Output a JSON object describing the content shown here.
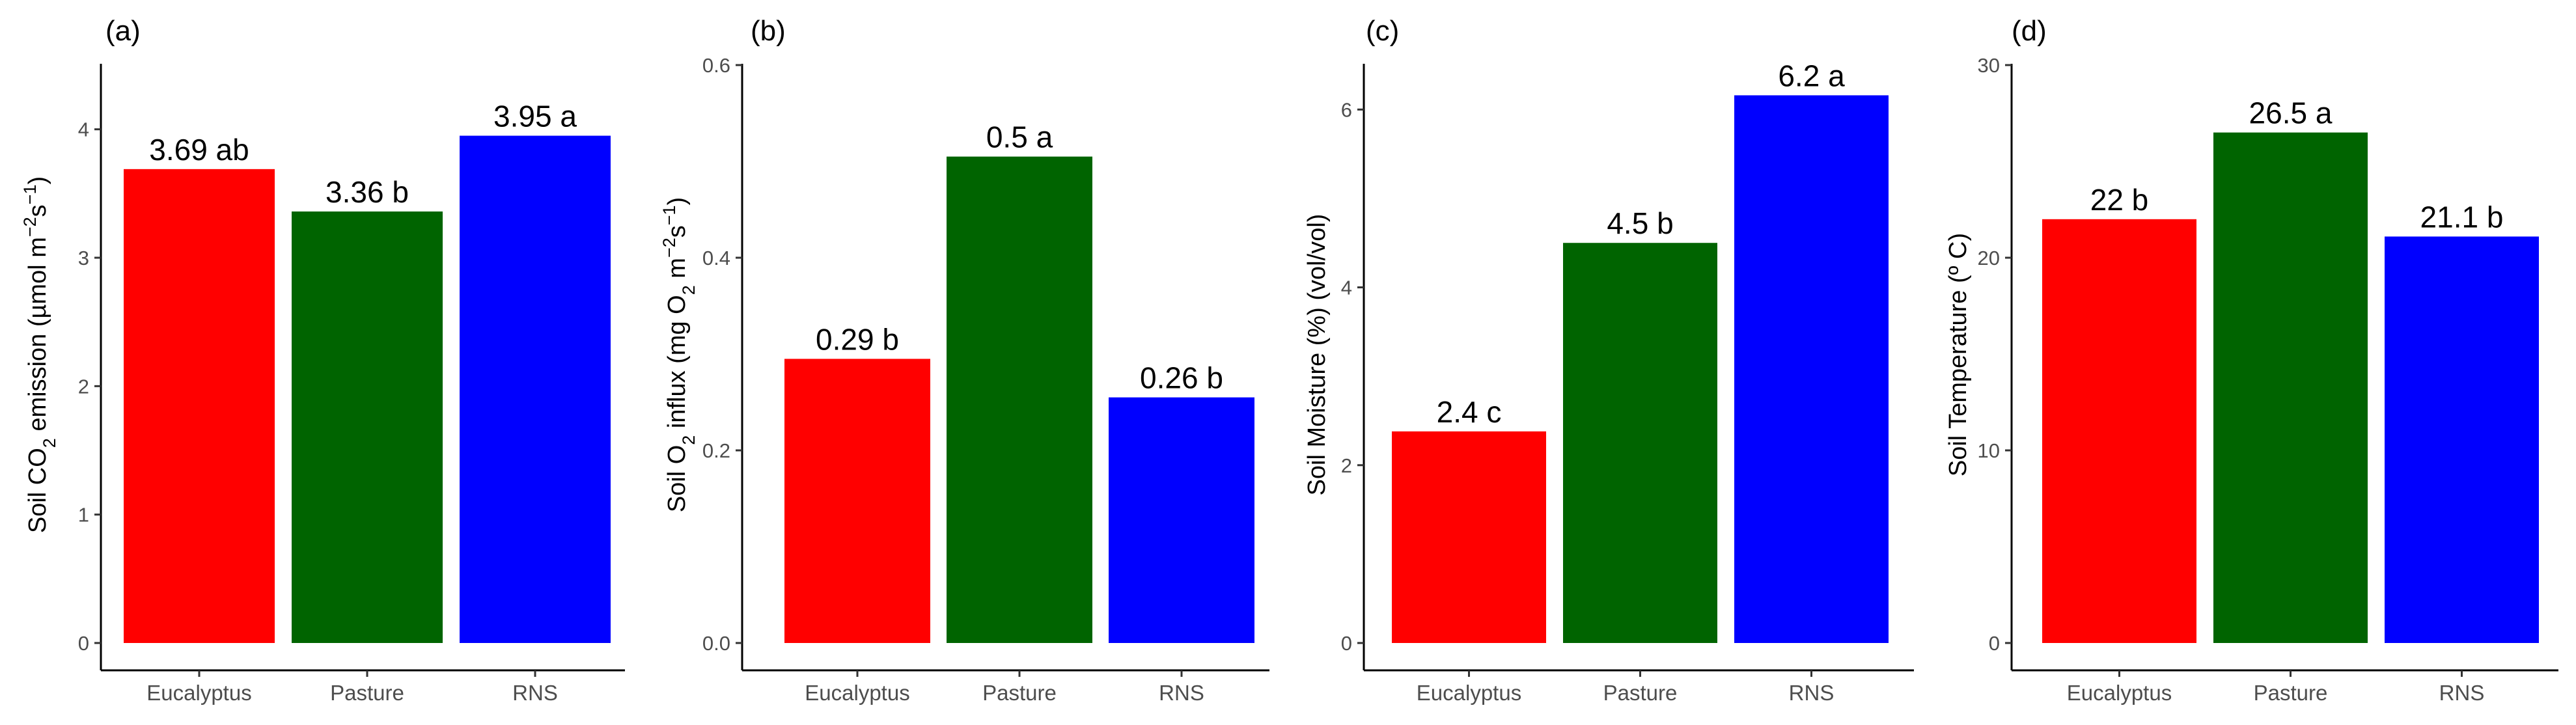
{
  "colors": {
    "Eucalyptus": "#ff0000",
    "Pasture": "#006400",
    "RNS": "#0000ff"
  },
  "chart_data": [
    {
      "type": "bar",
      "panel_label": "(a)",
      "categories": [
        "Eucalyptus",
        "Pasture",
        "RNS"
      ],
      "values": [
        3.69,
        3.36,
        3.95
      ],
      "bar_labels": [
        "3.69 ab",
        "3.36 b",
        "3.95 a"
      ],
      "ylabel": {
        "pre": "Soil CO",
        "sub": "2",
        "mid": " emission (µmol m",
        "sup1": "−2",
        "s": "s",
        "sup2": "−1",
        "post": ")"
      },
      "ylim": [
        0,
        4.5
      ],
      "yticks": [
        0,
        1,
        2,
        3,
        4
      ],
      "ytick_labels": [
        "0",
        "1",
        "2",
        "3",
        "4"
      ]
    },
    {
      "type": "bar",
      "panel_label": "(b)",
      "categories": [
        "Eucalyptus",
        "Pasture",
        "RNS"
      ],
      "values": [
        0.295,
        0.505,
        0.255
      ],
      "bar_labels": [
        "0.29 b",
        "0.5 a",
        "0.26 b"
      ],
      "ylabel": {
        "pre": "Soil O",
        "sub": "2",
        "mid": " influx (mg O",
        "sub2": "2",
        "mid2": " m",
        "sup1": "−2",
        "s": "s",
        "sup2": "−1",
        "post": ")"
      },
      "ylim": [
        0,
        0.6
      ],
      "yticks": [
        0,
        0.2,
        0.4,
        0.6
      ],
      "ytick_labels": [
        "0.0",
        "0.2",
        "0.4",
        "0.6"
      ]
    },
    {
      "type": "bar",
      "panel_label": "(c)",
      "categories": [
        "Eucalyptus",
        "Pasture",
        "RNS"
      ],
      "values": [
        2.38,
        4.5,
        6.16
      ],
      "bar_labels": [
        "2.4 c",
        "4.5 b",
        "6.2 a"
      ],
      "ylabel": {
        "text": "Soil Moisture (%) (vol/vol)"
      },
      "ylim": [
        0,
        6.5
      ],
      "yticks": [
        0,
        2,
        4,
        6
      ],
      "ytick_labels": [
        "0",
        "2",
        "4",
        "6"
      ]
    },
    {
      "type": "bar",
      "panel_label": "(d)",
      "categories": [
        "Eucalyptus",
        "Pasture",
        "RNS"
      ],
      "values": [
        22.0,
        26.5,
        21.1
      ],
      "bar_labels": [
        "22 b",
        "26.5 a",
        "21.1 b"
      ],
      "ylabel": {
        "text": "Soil Temperature (º C)"
      },
      "ylim": [
        0,
        30
      ],
      "yticks": [
        0,
        10,
        20,
        30
      ],
      "ytick_labels": [
        "0",
        "10",
        "20",
        "30"
      ]
    }
  ]
}
